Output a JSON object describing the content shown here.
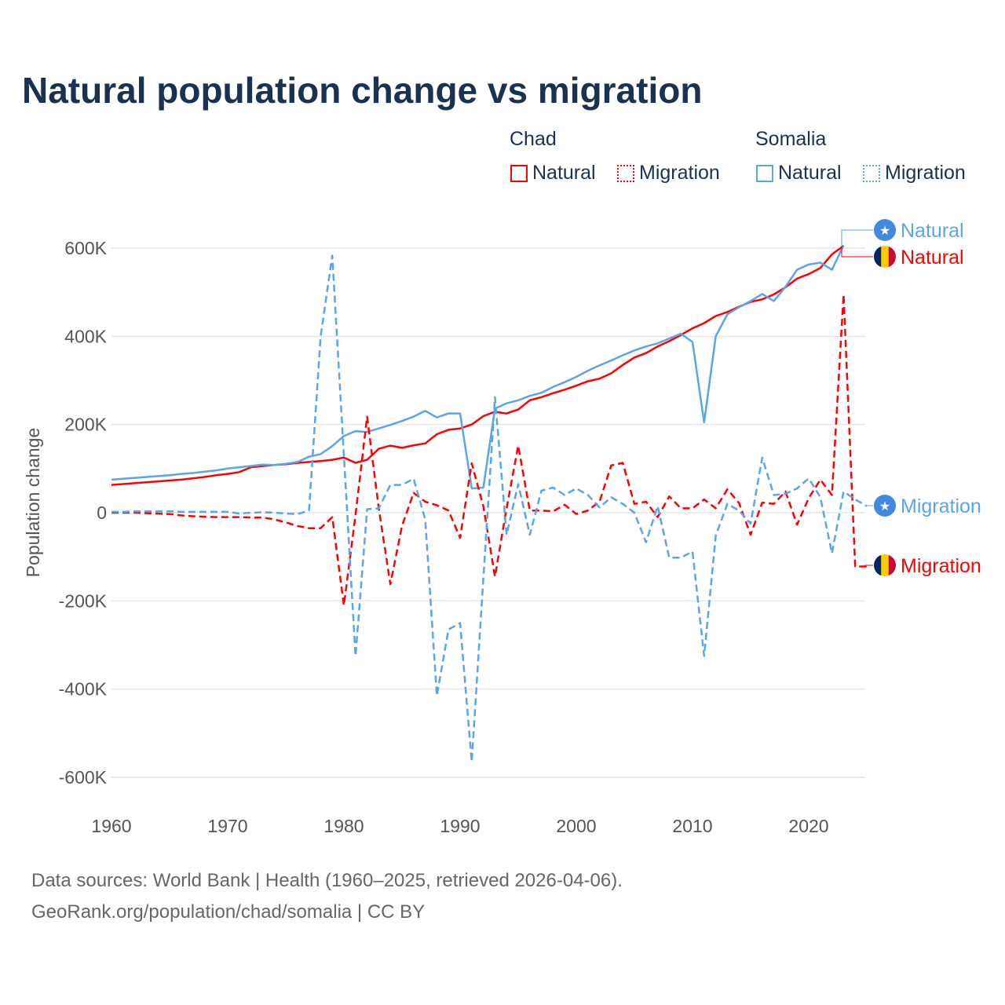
{
  "title": "Natural population change vs migration",
  "legend": {
    "groups": [
      {
        "name": "Chad",
        "color": "#ff0000",
        "items": [
          {
            "label": "Natural",
            "style": "solid"
          },
          {
            "label": "Migration",
            "style": "dotted"
          }
        ]
      },
      {
        "name": "Somalia",
        "color": "#5aa5ea",
        "items": [
          {
            "label": "Natural",
            "style": "solid"
          },
          {
            "label": "Migration",
            "style": "dotted"
          }
        ]
      }
    ]
  },
  "footer": {
    "line1": "Data sources: World Bank | Health (1960–2025, retrieved 2026-04-06).",
    "line2": "GeoRank.org/population/chad/somalia | CC BY"
  },
  "chart_data": {
    "type": "line",
    "title": "Natural population change vs migration",
    "xlabel": "",
    "ylabel": "Population change",
    "xlim": [
      1960,
      2025
    ],
    "ylim": [
      -650000,
      650000
    ],
    "x_ticks": [
      1960,
      1970,
      1980,
      1990,
      2000,
      2010,
      2020
    ],
    "x_tick_labels": [
      "1960",
      "1970",
      "1980",
      "1990",
      "2000",
      "2010",
      "2020"
    ],
    "y_ticks": [
      600000,
      400000,
      200000,
      0,
      -200000,
      -400000,
      -600000
    ],
    "y_tick_labels": [
      "600K",
      "400K",
      "200K",
      "0",
      "-200K",
      "-400K",
      "-600K"
    ],
    "grid": true,
    "legend_position": "top-right",
    "series": [
      {
        "name": "Chad Natural",
        "end_label": "Natural",
        "flag": "chad-flag",
        "color": "#ff0000",
        "dash": "solid",
        "start": 1960,
        "values": [
          63000,
          65000,
          67000,
          69000,
          71000,
          73000,
          75000,
          78000,
          81000,
          85000,
          88000,
          92000,
          103000,
          106000,
          108000,
          110000,
          113000,
          115000,
          117000,
          120000,
          125000,
          113000,
          120000,
          145000,
          152000,
          147000,
          153000,
          157000,
          178000,
          188000,
          191000,
          200000,
          219000,
          229000,
          225000,
          234000,
          255000,
          262000,
          271000,
          279000,
          288000,
          298000,
          304000,
          316000,
          335000,
          352000,
          362000,
          377000,
          389000,
          403000,
          418000,
          430000,
          446000,
          455000,
          467000,
          478000,
          484000,
          495000,
          511000,
          531000,
          541000,
          555000,
          586000,
          605000
        ]
      },
      {
        "name": "Somalia Natural",
        "end_label": "Natural",
        "flag": "somalia-flag",
        "color": "#5aa5ea",
        "dash": "solid",
        "start": 1960,
        "values": [
          75000,
          77000,
          79000,
          81000,
          83000,
          85000,
          88000,
          90000,
          93000,
          96000,
          100000,
          103000,
          106000,
          109000,
          108000,
          111000,
          115000,
          127000,
          133000,
          151000,
          174000,
          185000,
          183000,
          191000,
          199000,
          208000,
          218000,
          231000,
          216000,
          225000,
          225000,
          55000,
          57000,
          236000,
          248000,
          255000,
          265000,
          272000,
          285000,
          296000,
          308000,
          322000,
          334000,
          345000,
          357000,
          368000,
          377000,
          384000,
          395000,
          406000,
          387000,
          205000,
          400000,
          450000,
          466000,
          480000,
          496000,
          480000,
          512000,
          551000,
          563000,
          567000,
          551000,
          606000
        ]
      },
      {
        "name": "Chad Migration",
        "end_label": "Migration",
        "flag": "chad-flag",
        "color": "#ff0000",
        "dash": "dashed",
        "start": 1960,
        "values": [
          0,
          0,
          0,
          -1000,
          -2000,
          -3000,
          -6000,
          -8000,
          -9000,
          -10000,
          -10000,
          -10000,
          -11000,
          -11000,
          -15000,
          -22000,
          -30000,
          -35000,
          -35000,
          -10000,
          -210000,
          -5000,
          218000,
          10000,
          -162000,
          -30000,
          45000,
          25000,
          17000,
          5000,
          -57000,
          112000,
          15000,
          -145000,
          10000,
          152000,
          5000,
          5000,
          3000,
          18000,
          -3000,
          5000,
          25000,
          107000,
          113000,
          20000,
          25000,
          -10000,
          37000,
          10000,
          10000,
          30000,
          10000,
          53000,
          22000,
          -50000,
          23000,
          20000,
          48000,
          -27000,
          33000,
          75000,
          40000,
          495000,
          -122000,
          -122000
        ]
      },
      {
        "name": "Somalia Migration",
        "end_label": "Migration",
        "flag": "somalia-flag",
        "color": "#5aa5ea",
        "dash": "dashed",
        "start": 1960,
        "values": [
          2000,
          2000,
          3000,
          3000,
          3000,
          3000,
          2000,
          2000,
          2000,
          2000,
          2000,
          -2000,
          0,
          1000,
          0,
          -2000,
          -3000,
          5000,
          400000,
          583000,
          130000,
          -325000,
          8000,
          10000,
          63000,
          63000,
          77000,
          -15000,
          -415000,
          -265000,
          -250000,
          -565000,
          -150000,
          262000,
          -50000,
          65000,
          -50000,
          50000,
          57000,
          40000,
          55000,
          40000,
          12000,
          35000,
          20000,
          0,
          -67000,
          15000,
          -102000,
          -102000,
          -88000,
          -325000,
          -52000,
          20000,
          5000,
          -25000,
          125000,
          40000,
          43000,
          55000,
          78000,
          35000,
          -92000,
          48000,
          30000,
          15000
        ]
      }
    ]
  }
}
